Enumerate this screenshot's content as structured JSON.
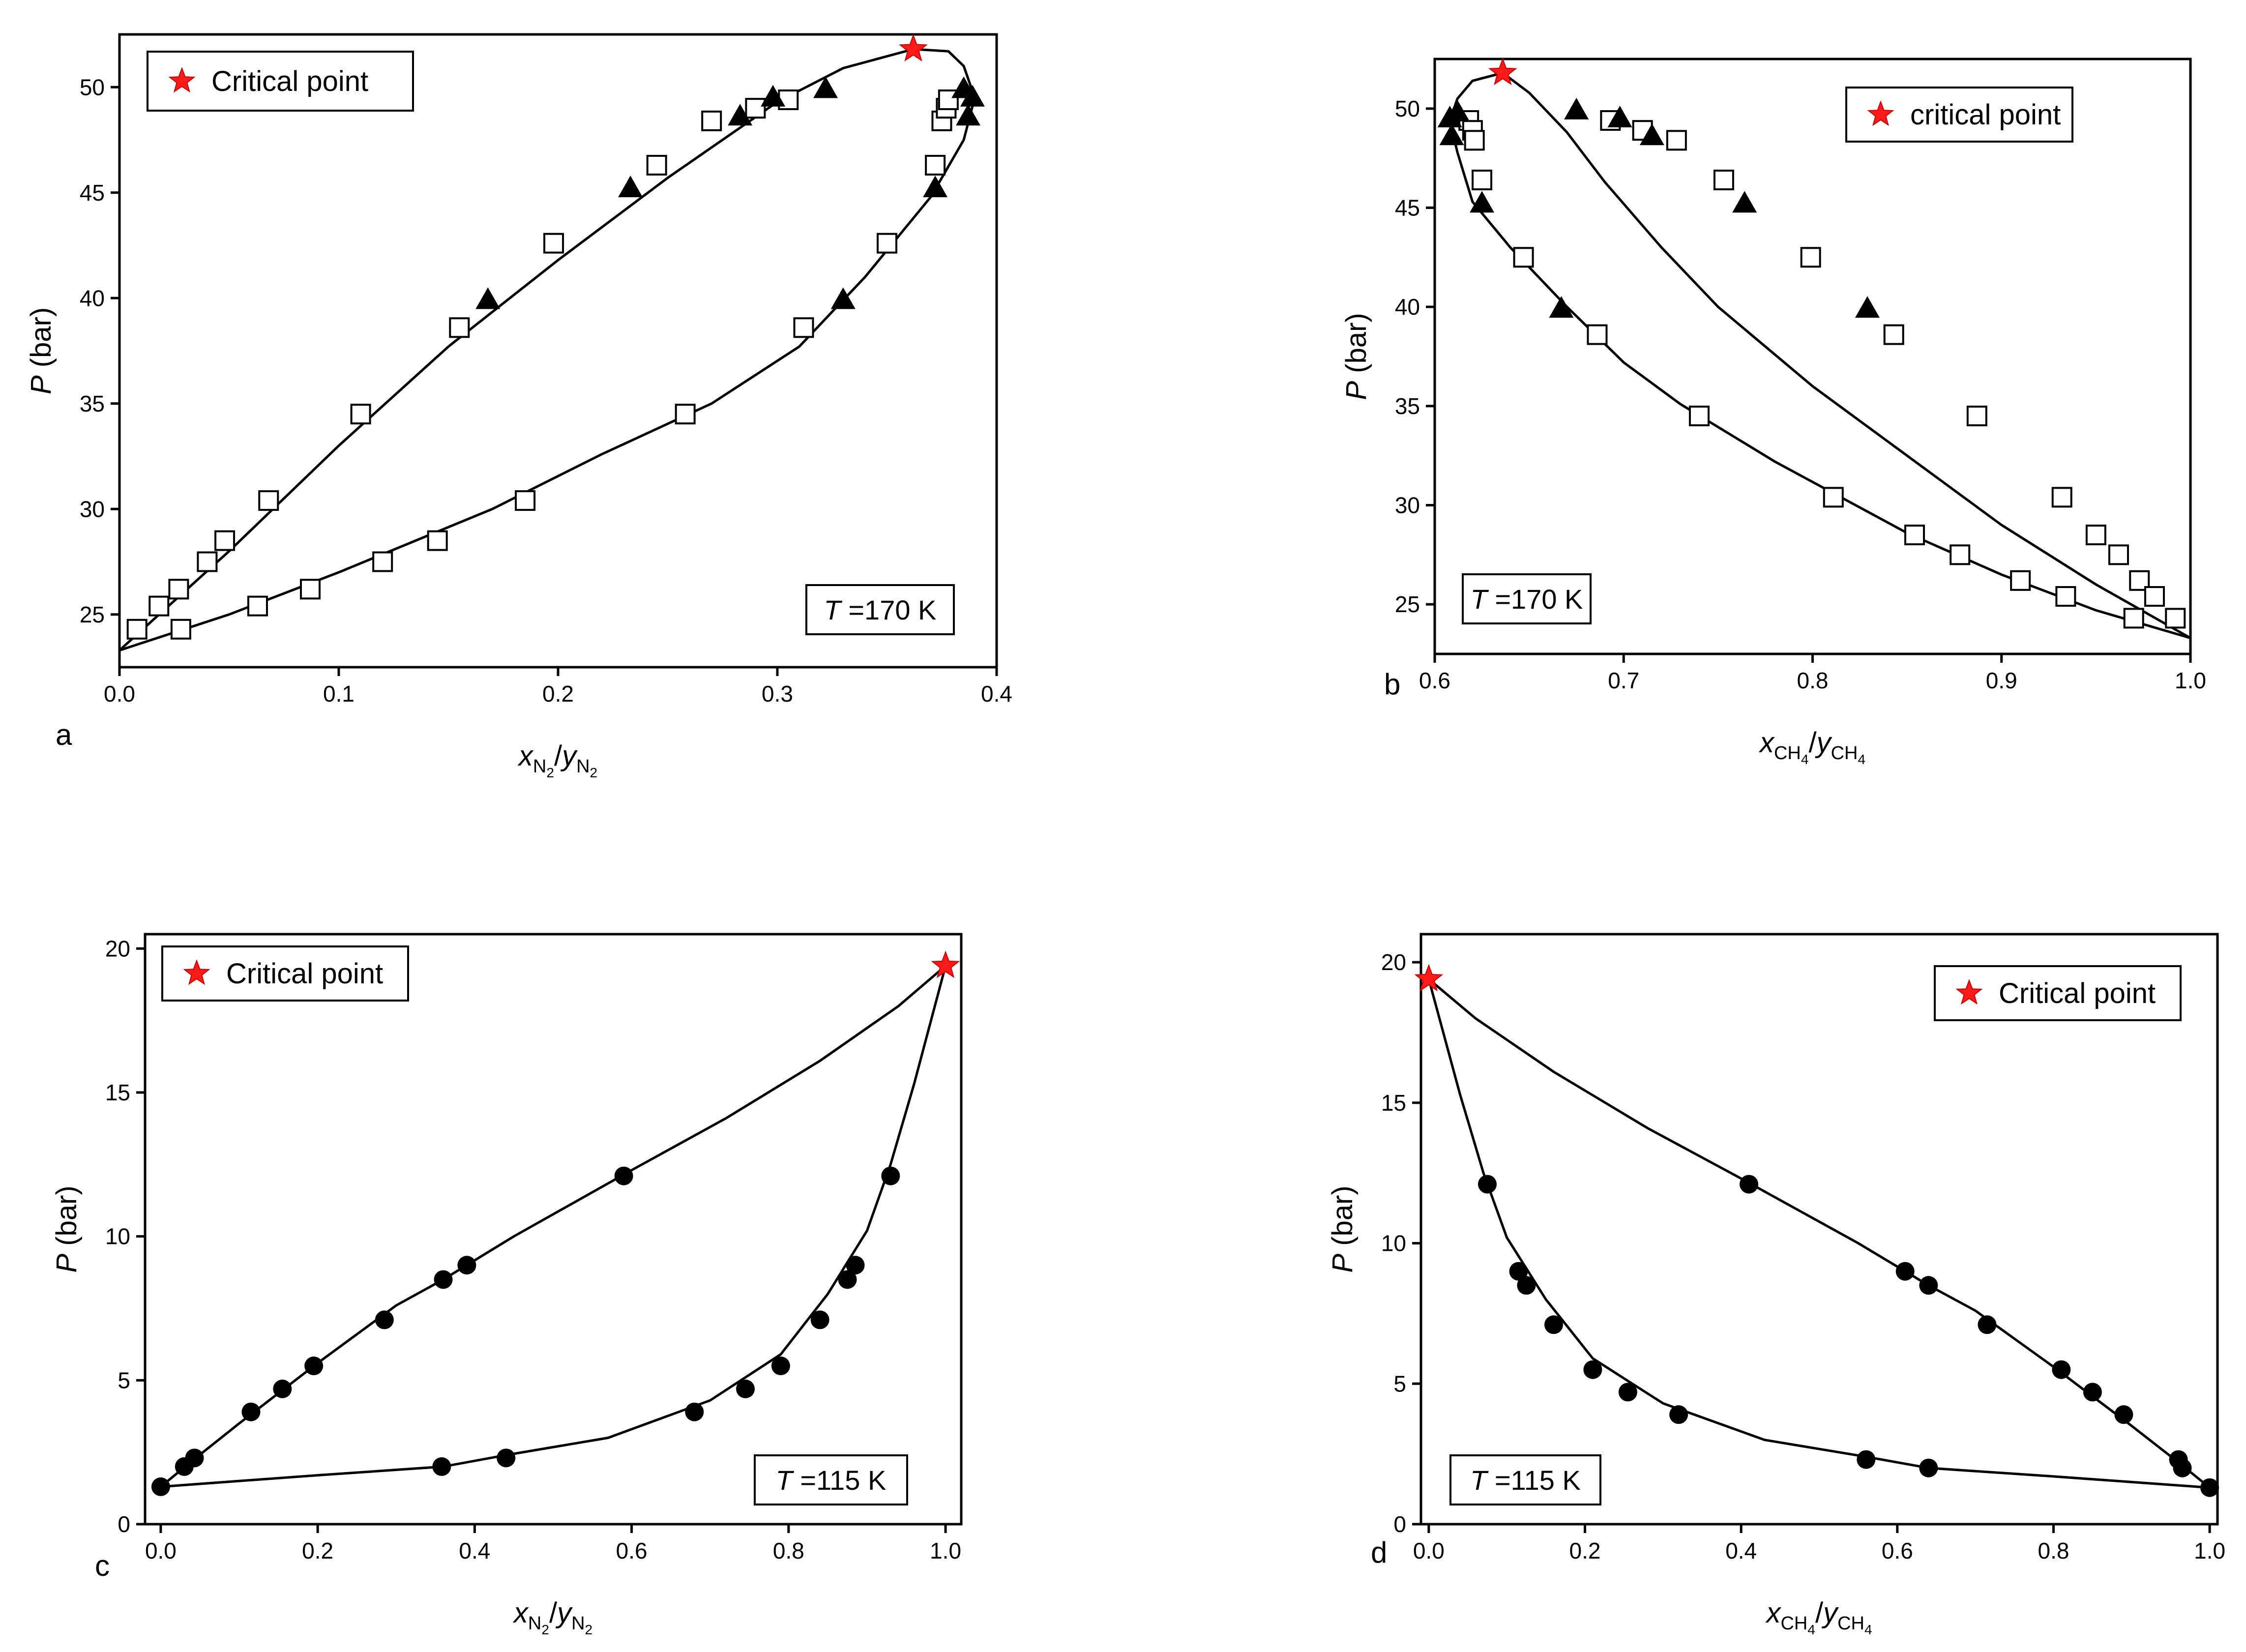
{
  "chart_data": [
    {
      "panel": "a",
      "type": "scatter",
      "title": "",
      "xlabel": {
        "main": "x",
        "main_sub": "N",
        "sub_sub": "2",
        "sep": "/",
        "second": "y",
        "second_sub": "N",
        "second_subsub": "2"
      },
      "ylabel": {
        "var": "P",
        "unit": " (bar)"
      },
      "xlim": [
        0.0,
        0.4
      ],
      "ylim": [
        22.5,
        52.5
      ],
      "xticks": [
        "0.0",
        "0.1",
        "0.2",
        "0.3",
        "0.4"
      ],
      "yticks": [
        "25",
        "30",
        "35",
        "40",
        "45",
        "50"
      ],
      "temperature": {
        "var": "T",
        "value": " =170 K"
      },
      "legend": {
        "label": "Critical point",
        "position": "top-left"
      },
      "series": [
        {
          "name": "open squares",
          "marker": "square-open",
          "points": [
            [
              0.008,
              24.3
            ],
            [
              0.018,
              25.4
            ],
            [
              0.027,
              26.2
            ],
            [
              0.04,
              27.5
            ],
            [
              0.048,
              28.5
            ],
            [
              0.068,
              30.4
            ],
            [
              0.11,
              34.5
            ],
            [
              0.155,
              38.6
            ],
            [
              0.198,
              42.6
            ],
            [
              0.245,
              46.3
            ],
            [
              0.27,
              48.4
            ],
            [
              0.29,
              49.0
            ],
            [
              0.305,
              49.4
            ],
            [
              0.028,
              24.3
            ],
            [
              0.063,
              25.4
            ],
            [
              0.087,
              26.2
            ],
            [
              0.12,
              27.5
            ],
            [
              0.145,
              28.5
            ],
            [
              0.185,
              30.4
            ],
            [
              0.258,
              34.5
            ],
            [
              0.312,
              38.6
            ],
            [
              0.35,
              42.6
            ],
            [
              0.372,
              46.3
            ],
            [
              0.375,
              48.4
            ],
            [
              0.377,
              49.0
            ],
            [
              0.378,
              49.4
            ]
          ]
        },
        {
          "name": "filled triangles",
          "marker": "triangle-filled",
          "points": [
            [
              0.168,
              39.9
            ],
            [
              0.233,
              45.2
            ],
            [
              0.283,
              48.6
            ],
            [
              0.298,
              49.5
            ],
            [
              0.322,
              49.9
            ],
            [
              0.33,
              39.9
            ],
            [
              0.372,
              45.2
            ],
            [
              0.387,
              48.6
            ],
            [
              0.389,
              49.5
            ],
            [
              0.385,
              49.9
            ]
          ]
        },
        {
          "name": "Critical point",
          "marker": "star",
          "points": [
            [
              0.362,
              51.8
            ]
          ]
        }
      ],
      "curves": [
        [
          [
            0.0,
            23.3
          ],
          [
            0.05,
            28.0
          ],
          [
            0.1,
            33.0
          ],
          [
            0.15,
            37.7
          ],
          [
            0.2,
            41.8
          ],
          [
            0.25,
            45.7
          ],
          [
            0.3,
            49.3
          ],
          [
            0.33,
            50.9
          ],
          [
            0.362,
            51.8
          ],
          [
            0.378,
            51.7
          ],
          [
            0.385,
            51.0
          ],
          [
            0.39,
            49.5
          ],
          [
            0.385,
            47.5
          ],
          [
            0.37,
            44.8
          ],
          [
            0.34,
            41.0
          ],
          [
            0.31,
            37.7
          ],
          [
            0.27,
            35.0
          ],
          [
            0.22,
            32.6
          ],
          [
            0.17,
            30.0
          ],
          [
            0.1,
            27.0
          ],
          [
            0.05,
            25.0
          ],
          [
            0.0,
            23.3
          ]
        ]
      ]
    },
    {
      "panel": "b",
      "type": "scatter",
      "title": "",
      "xlabel": {
        "main": "x",
        "main_sub": "CH",
        "sub_sub": "4",
        "sep": "/",
        "second": "y",
        "second_sub": "CH",
        "second_subsub": "4"
      },
      "ylabel": {
        "var": "P",
        "unit": " (bar)"
      },
      "xlim": [
        0.6,
        1.0
      ],
      "ylim": [
        22.5,
        52.5
      ],
      "xticks": [
        "0.6",
        "0.7",
        "0.8",
        "0.9",
        "1.0"
      ],
      "yticks": [
        "25",
        "30",
        "35",
        "40",
        "45",
        "50"
      ],
      "temperature": {
        "var": "T",
        "value": " =170 K"
      },
      "legend": {
        "label": "critical point",
        "position": "top-right"
      },
      "series": [
        {
          "name": "open squares",
          "marker": "square-open",
          "points": [
            [
              0.618,
              49.4
            ],
            [
              0.62,
              48.9
            ],
            [
              0.621,
              48.4
            ],
            [
              0.625,
              46.4
            ],
            [
              0.647,
              42.5
            ],
            [
              0.686,
              38.6
            ],
            [
              0.74,
              34.5
            ],
            [
              0.811,
              30.4
            ],
            [
              0.854,
              28.5
            ],
            [
              0.878,
              27.5
            ],
            [
              0.91,
              26.2
            ],
            [
              0.934,
              25.4
            ],
            [
              0.97,
              24.3
            ],
            [
              0.693,
              49.4
            ],
            [
              0.71,
              48.9
            ],
            [
              0.728,
              48.4
            ],
            [
              0.753,
              46.4
            ],
            [
              0.799,
              42.5
            ],
            [
              0.843,
              38.6
            ],
            [
              0.887,
              34.5
            ],
            [
              0.932,
              30.4
            ],
            [
              0.95,
              28.5
            ],
            [
              0.962,
              27.5
            ],
            [
              0.973,
              26.2
            ],
            [
              0.981,
              25.4
            ],
            [
              0.992,
              24.3
            ]
          ]
        },
        {
          "name": "filled triangles",
          "marker": "triangle-filled",
          "points": [
            [
              0.608,
              49.5
            ],
            [
              0.612,
              49.8
            ],
            [
              0.609,
              48.6
            ],
            [
              0.625,
              45.2
            ],
            [
              0.667,
              39.9
            ],
            [
              0.675,
              49.9
            ],
            [
              0.698,
              49.5
            ],
            [
              0.715,
              48.6
            ],
            [
              0.764,
              45.2
            ],
            [
              0.829,
              39.9
            ]
          ]
        },
        {
          "name": "critical point",
          "marker": "star",
          "points": [
            [
              0.636,
              51.8
            ]
          ]
        }
      ],
      "curves": [
        [
          [
            1.0,
            23.3
          ],
          [
            0.95,
            26.0
          ],
          [
            0.9,
            29.0
          ],
          [
            0.85,
            32.5
          ],
          [
            0.8,
            36.0
          ],
          [
            0.75,
            40.0
          ],
          [
            0.72,
            43.0
          ],
          [
            0.69,
            46.3
          ],
          [
            0.67,
            48.8
          ],
          [
            0.65,
            50.8
          ],
          [
            0.636,
            51.8
          ],
          [
            0.62,
            51.4
          ],
          [
            0.612,
            50.5
          ],
          [
            0.608,
            49.4
          ],
          [
            0.612,
            47.8
          ],
          [
            0.62,
            45.3
          ],
          [
            0.64,
            43.0
          ],
          [
            0.67,
            40.0
          ],
          [
            0.7,
            37.2
          ],
          [
            0.73,
            35.1
          ],
          [
            0.78,
            32.2
          ],
          [
            0.85,
            28.6
          ],
          [
            0.9,
            26.5
          ],
          [
            0.95,
            24.7
          ],
          [
            1.0,
            23.3
          ]
        ]
      ]
    },
    {
      "panel": "c",
      "type": "scatter",
      "title": "",
      "xlabel": {
        "main": "x",
        "main_sub": "N",
        "sub_sub": "2",
        "sep": "/",
        "second": "y",
        "second_sub": "N",
        "second_subsub": "2"
      },
      "ylabel": {
        "var": "P",
        "unit": " (bar)"
      },
      "xlim": [
        -0.02,
        1.02
      ],
      "ylim": [
        0.0,
        20.5
      ],
      "xticks": [
        "0.0",
        "0.2",
        "0.4",
        "0.6",
        "0.8",
        "1.0"
      ],
      "yticks": [
        "0",
        "5",
        "10",
        "15",
        "20"
      ],
      "temperature": {
        "var": "T",
        "value": " =115 K"
      },
      "legend": {
        "label": "Critical point",
        "position": "top-left"
      },
      "series": [
        {
          "name": "filled circles",
          "marker": "circle-filled",
          "points": [
            [
              0.0,
              1.3
            ],
            [
              0.03,
              2.0
            ],
            [
              0.043,
              2.3
            ],
            [
              0.115,
              3.9
            ],
            [
              0.155,
              4.7
            ],
            [
              0.195,
              5.5
            ],
            [
              0.285,
              7.1
            ],
            [
              0.36,
              8.5
            ],
            [
              0.39,
              9.0
            ],
            [
              0.59,
              12.1
            ],
            [
              0.358,
              2.0
            ],
            [
              0.44,
              2.3
            ],
            [
              0.68,
              3.9
            ],
            [
              0.745,
              4.7
            ],
            [
              0.79,
              5.5
            ],
            [
              0.84,
              7.1
            ],
            [
              0.875,
              8.5
            ],
            [
              0.885,
              9.0
            ],
            [
              0.93,
              12.1
            ]
          ]
        },
        {
          "name": "Critical point",
          "marker": "star",
          "points": [
            [
              1.0,
              19.4
            ]
          ]
        }
      ],
      "curves": [
        [
          [
            0.0,
            1.3
          ],
          [
            0.04,
            2.2
          ],
          [
            0.1,
            3.5
          ],
          [
            0.2,
            5.6
          ],
          [
            0.3,
            7.6
          ],
          [
            0.36,
            8.5
          ],
          [
            0.45,
            10.0
          ],
          [
            0.6,
            12.3
          ],
          [
            0.72,
            14.1
          ],
          [
            0.84,
            16.1
          ],
          [
            0.94,
            18.0
          ],
          [
            1.0,
            19.4
          ]
        ],
        [
          [
            0.0,
            1.3
          ],
          [
            0.2,
            1.7
          ],
          [
            0.36,
            2.0
          ],
          [
            0.44,
            2.4
          ],
          [
            0.57,
            3.0
          ],
          [
            0.7,
            4.3
          ],
          [
            0.79,
            5.9
          ],
          [
            0.85,
            8.0
          ],
          [
            0.9,
            10.2
          ],
          [
            0.93,
            12.5
          ],
          [
            0.96,
            15.3
          ],
          [
            1.0,
            19.4
          ]
        ]
      ]
    },
    {
      "panel": "d",
      "type": "scatter",
      "title": "",
      "xlabel": {
        "main": "x",
        "main_sub": "CH",
        "sub_sub": "4",
        "sep": "/",
        "second": "y",
        "second_sub": "CH",
        "second_subsub": "4"
      },
      "ylabel": {
        "var": "P",
        "unit": " (bar)"
      },
      "xlim": [
        -0.01,
        1.01
      ],
      "ylim": [
        0.0,
        21.0
      ],
      "xticks": [
        "0.0",
        "0.2",
        "0.4",
        "0.6",
        "0.8",
        "1.0"
      ],
      "yticks": [
        "0",
        "5",
        "10",
        "15",
        "20"
      ],
      "temperature": {
        "var": "T",
        "value": " =115 K"
      },
      "legend": {
        "label": "Critical point",
        "position": "top-right"
      },
      "series": [
        {
          "name": "filled circles",
          "marker": "circle-filled",
          "points": [
            [
              1.0,
              1.3
            ],
            [
              0.965,
              2.0
            ],
            [
              0.96,
              2.3
            ],
            [
              0.89,
              3.9
            ],
            [
              0.85,
              4.7
            ],
            [
              0.81,
              5.5
            ],
            [
              0.715,
              7.1
            ],
            [
              0.64,
              8.5
            ],
            [
              0.61,
              9.0
            ],
            [
              0.41,
              12.1
            ],
            [
              0.64,
              2.0
            ],
            [
              0.56,
              2.3
            ],
            [
              0.32,
              3.9
            ],
            [
              0.255,
              4.7
            ],
            [
              0.21,
              5.5
            ],
            [
              0.16,
              7.1
            ],
            [
              0.125,
              8.5
            ],
            [
              0.115,
              9.0
            ],
            [
              0.075,
              12.1
            ]
          ]
        },
        {
          "name": "Critical point",
          "marker": "star",
          "points": [
            [
              0.0,
              19.4
            ]
          ]
        }
      ],
      "curves": [
        [
          [
            1.0,
            1.3
          ],
          [
            0.96,
            2.2
          ],
          [
            0.9,
            3.5
          ],
          [
            0.8,
            5.6
          ],
          [
            0.7,
            7.6
          ],
          [
            0.64,
            8.5
          ],
          [
            0.55,
            10.0
          ],
          [
            0.4,
            12.3
          ],
          [
            0.28,
            14.1
          ],
          [
            0.16,
            16.1
          ],
          [
            0.06,
            18.0
          ],
          [
            0.0,
            19.4
          ]
        ],
        [
          [
            1.0,
            1.3
          ],
          [
            0.8,
            1.7
          ],
          [
            0.64,
            2.0
          ],
          [
            0.56,
            2.4
          ],
          [
            0.43,
            3.0
          ],
          [
            0.3,
            4.3
          ],
          [
            0.21,
            5.9
          ],
          [
            0.15,
            8.0
          ],
          [
            0.1,
            10.2
          ],
          [
            0.07,
            12.5
          ],
          [
            0.04,
            15.3
          ],
          [
            0.0,
            19.4
          ]
        ]
      ]
    }
  ]
}
